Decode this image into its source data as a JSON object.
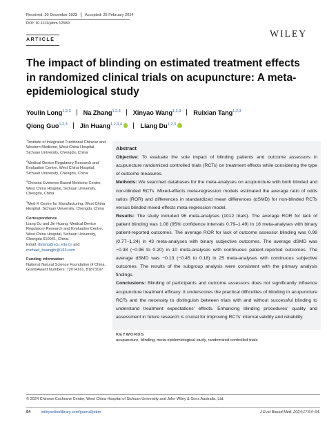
{
  "header": {
    "received": "Received: 20 December 2023",
    "accepted": "Accepted: 25 February 2024",
    "doi": "DOI: 10.1111/jebm.12589",
    "section": "ARTICLE",
    "publisher": "WILEY"
  },
  "title": "The impact of blinding on estimated treatment effects in randomized clinical trials on acupuncture: A meta-epidemiological study",
  "authors": [
    {
      "name": "Youlin Long",
      "affiliations": "1,2,3"
    },
    {
      "name": "Na Zhang",
      "affiliations": "1,2,3"
    },
    {
      "name": "Xinyao Wang",
      "affiliations": "1,2,3"
    },
    {
      "name": "Ruixian Tang",
      "affiliations": "1,2,3"
    },
    {
      "name": "Qiong Guo",
      "affiliations": "1,2,3"
    },
    {
      "name": "Jin Huang",
      "affiliations": "1,2,3,4"
    },
    {
      "name": "Liang Du",
      "affiliations": "1,2,3"
    }
  ],
  "affiliations": [
    {
      "number": "1",
      "text": "Institute of Integrated Traditional Chinese and Western Medicine, West China Hospital, Sichuan University, Chengdu, China"
    },
    {
      "number": "2",
      "text": "Medical Device Regulatory Research and Evaluation Centre, West China Hospital, Sichuan University, Chengdu, China"
    },
    {
      "number": "3",
      "text": "Chinese Evidence-Based Medicine Centre, West China Hospital, Sichuan University, Chengdu, China"
    },
    {
      "number": "4",
      "text": "Med-X Centre for Manufacturing, West China Hospital, Sichuan University, Chengdu, China"
    }
  ],
  "correspondence": {
    "heading": "Correspondence",
    "text": "Liang Du and Jin Huang, Medical Device Regulatory Research and Evaluation Centre, West China Hospital, Sichuan University, Chengdu 610041, China.",
    "email_label": "Email:",
    "emails": [
      "dulang@scu.edu.cn",
      "michael_huangjin@163.com"
    ],
    "connector": "and"
  },
  "funding": {
    "heading": "Funding information",
    "text": "National Natural Science Foundation of China, Grant/Award Numbers: 72074161, 81873197"
  },
  "abstract": {
    "heading": "Abstract",
    "sections": [
      {
        "label": "Objective:",
        "text": "To evaluate the sole impact of blinding patients and outcome assessors in acupuncture randomized controlled trials (RCTs) on treatment effects while considering the type of outcome measures."
      },
      {
        "label": "Methods:",
        "text": "We searched databases for the meta-analyses on acupuncture with both blinded and non-blinded RCTs. Mixed-effects meta-regression models estimated the average ratio of odds ratios (ROR) and differences in standardized mean differences (dSMD) for non-blinded RCTs versus blinded mixed-effects meta-regression model."
      },
      {
        "label": "Results:",
        "text": "The study included 96 meta-analyses (1012 trials). The average ROR for lack of patient blinding was 1.08 (95% confidence intervals 0.79–1.49) in 18 meta-analyses with binary patient-reported outcomes. The average ROR for lack of outcome assessor blinding was 0.98 (0.77–1.24) in 43 meta-analyses with binary subjective outcomes. The average dSMD was −0.38 (−0.96 to 0.20) in 10 meta-analyses with continuous patient-reported outcomes. The average dSMD was −0.13 (−0.45 to 0.18) in 25 meta-analyses with continuous subjective outcomes. The results of the subgroup analysis were consistent with the primary analysis findings."
      },
      {
        "label": "Conclusions:",
        "text": "Blinding of participants and outcome assessors does not significantly influence acupuncture treatment efficacy. It underscores the practical difficulties of blinding in acupuncture RCTs and the necessity to distinguish between trials with and without successful blinding to understand treatment expectations' effects. Enhancing blinding procedures' quality and assessment in future research is crucial for improving RCTs' internal validity and reliability."
      }
    ]
  },
  "keywords": {
    "heading": "KEYWORDS",
    "text": "acupuncture, blinding, meta-epidemiological study, randomized controlled trials"
  },
  "footer": {
    "copyright": "© 2024 Chinese Cochrane Center, West China Hospital of Sichuan University and John Wiley & Sons Australia, Ltd.",
    "page": "54",
    "url": "wileyonlinelibrary.com/journal/jebm",
    "citation": "J Evid Based Med. 2024;17:54–64."
  }
}
